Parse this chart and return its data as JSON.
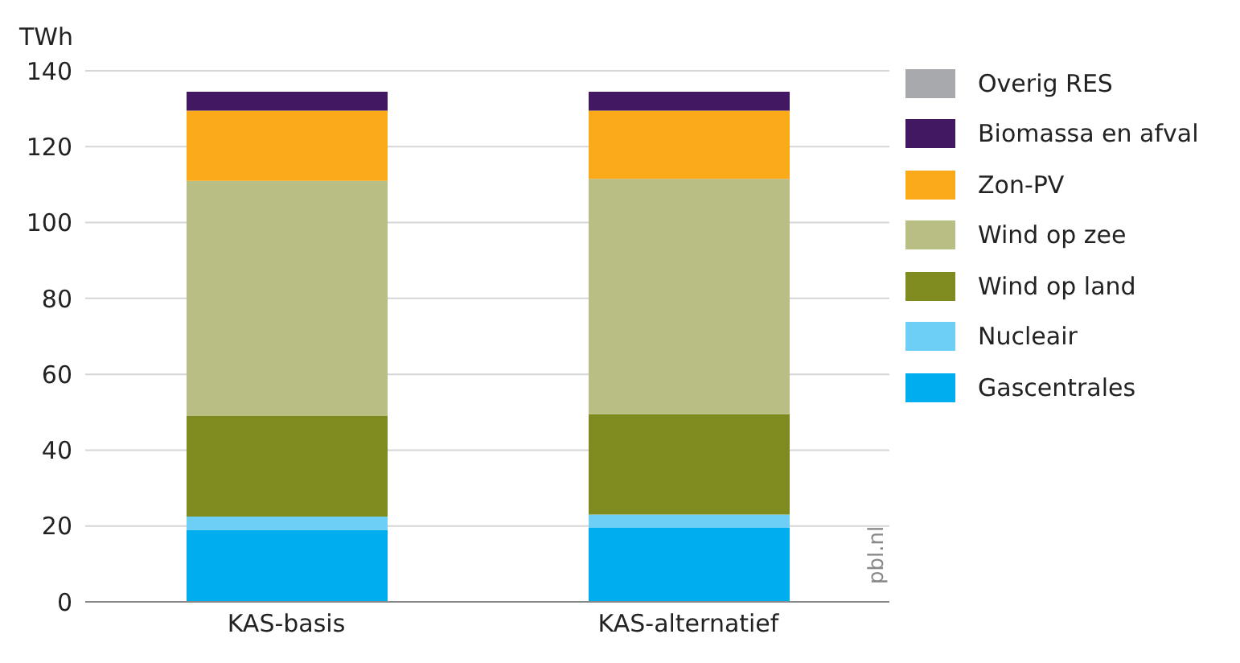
{
  "chart_data": {
    "type": "bar",
    "stacked": true,
    "ylabel": "TWh",
    "categories": [
      "KAS-basis",
      "KAS-alternatief"
    ],
    "series": [
      {
        "name": "Gascentrales",
        "color": "#00aeef",
        "values": [
          19,
          19.5
        ]
      },
      {
        "name": "Nucleair",
        "color": "#6dcff6",
        "values": [
          3.5,
          3.5
        ]
      },
      {
        "name": "Wind op land",
        "color": "#7f8b1f",
        "values": [
          26.5,
          26.5
        ]
      },
      {
        "name": "Wind op zee",
        "color": "#b8be84",
        "values": [
          62,
          62
        ]
      },
      {
        "name": "Zon-PV",
        "color": "#faa919",
        "values": [
          18.5,
          18
        ]
      },
      {
        "name": "Biomassa en afval",
        "color": "#421863",
        "values": [
          5,
          5
        ]
      },
      {
        "name": "Overig RES",
        "color": "#a7a9ac",
        "values": [
          0,
          0
        ]
      }
    ],
    "ylim": [
      0,
      140
    ],
    "yticks": [
      0,
      20,
      40,
      60,
      80,
      100,
      120,
      140
    ],
    "grid": "y",
    "legend": "right",
    "annotations": [
      "pbl.nl"
    ]
  }
}
